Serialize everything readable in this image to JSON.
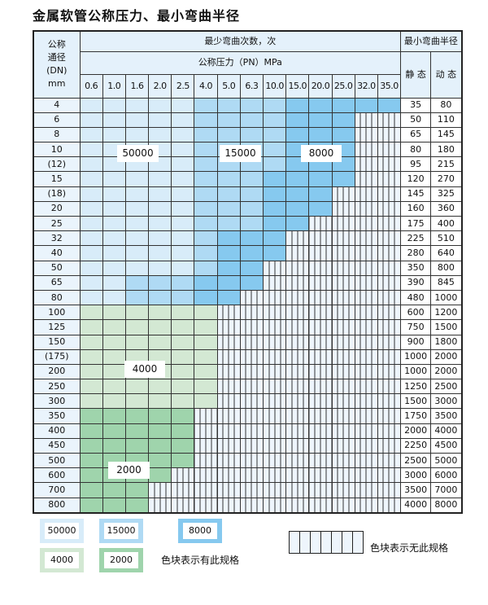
{
  "title": "金属软管公称压力、最小弯曲半径",
  "header": {
    "dn_label": [
      "公称",
      "通径",
      "(DN)",
      "mm"
    ],
    "cycles_label": "最少弯曲次数，次",
    "pressure_label": "公称压力（PN）MPa",
    "radius_label": "最小弯曲半径",
    "static_label": "静 态",
    "dynamic_label": "动 态",
    "pressures": [
      "0.6",
      "1.0",
      "1.6",
      "2.0",
      "2.5",
      "4.0",
      "5.0",
      "6.3",
      "10.0",
      "15.0",
      "20.0",
      "25.0",
      "32.0",
      "35.0"
    ]
  },
  "rows": [
    {
      "dn": "4",
      "static": "35",
      "dynamic": "80",
      "cells": "aaaaabbbbccccc"
    },
    {
      "dn": "6",
      "static": "50",
      "dynamic": "110",
      "cells": "aaaaabbbbccc--"
    },
    {
      "dn": "8",
      "static": "65",
      "dynamic": "145",
      "cells": "aaaaabbbbccc--"
    },
    {
      "dn": "10",
      "static": "80",
      "dynamic": "180",
      "cells": "aaaaabbbbccc--"
    },
    {
      "dn": "(12)",
      "static": "95",
      "dynamic": "215",
      "cells": "aaaaabbbbccc--"
    },
    {
      "dn": "15",
      "static": "120",
      "dynamic": "270",
      "cells": "aaaaabbbcccc--"
    },
    {
      "dn": "(18)",
      "static": "145",
      "dynamic": "325",
      "cells": "aaaaabbbccc---"
    },
    {
      "dn": "20",
      "static": "160",
      "dynamic": "360",
      "cells": "aaaaabbbccc---"
    },
    {
      "dn": "25",
      "static": "175",
      "dynamic": "400",
      "cells": "aaaaabbbcc----"
    },
    {
      "dn": "32",
      "static": "225",
      "dynamic": "510",
      "cells": "aaaaabccc-----"
    },
    {
      "dn": "40",
      "static": "280",
      "dynamic": "640",
      "cells": "aaaaabccc-----"
    },
    {
      "dn": "50",
      "static": "350",
      "dynamic": "800",
      "cells": "aaaaabcc------"
    },
    {
      "dn": "65",
      "static": "390",
      "dynamic": "845",
      "cells": "aabbbccc------"
    },
    {
      "dn": "80",
      "static": "480",
      "dynamic": "1000",
      "cells": "aabbbcc-------"
    },
    {
      "dn": "100",
      "static": "600",
      "dynamic": "1200",
      "cells": "gggggg--------"
    },
    {
      "dn": "125",
      "static": "750",
      "dynamic": "1500",
      "cells": "gggggg--------"
    },
    {
      "dn": "150",
      "static": "900",
      "dynamic": "1800",
      "cells": "gggggg--------"
    },
    {
      "dn": "(175)",
      "static": "1000",
      "dynamic": "2000",
      "cells": "gggggg--------"
    },
    {
      "dn": "200",
      "static": "1000",
      "dynamic": "2000",
      "cells": "gggggg--------"
    },
    {
      "dn": "250",
      "static": "1250",
      "dynamic": "2500",
      "cells": "gggggg--------"
    },
    {
      "dn": "300",
      "static": "1500",
      "dynamic": "3000",
      "cells": "gggggg--------"
    },
    {
      "dn": "350",
      "static": "1750",
      "dynamic": "3500",
      "cells": "hhhhh---------"
    },
    {
      "dn": "400",
      "static": "2000",
      "dynamic": "4000",
      "cells": "hhhhh---------"
    },
    {
      "dn": "450",
      "static": "2250",
      "dynamic": "4500",
      "cells": "hhhhh---------"
    },
    {
      "dn": "500",
      "static": "2500",
      "dynamic": "5000",
      "cells": "hhhhh---------"
    },
    {
      "dn": "600",
      "static": "3000",
      "dynamic": "6000",
      "cells": "hhhh----------"
    },
    {
      "dn": "700",
      "static": "3500",
      "dynamic": "7000",
      "cells": "hhh-----------"
    },
    {
      "dn": "800",
      "static": "4000",
      "dynamic": "8000",
      "cells": "hhh-----------"
    }
  ],
  "region_labels": {
    "a": "50000",
    "b": "15000",
    "c": "8000",
    "g": "4000",
    "h": "2000"
  },
  "legend": {
    "items": [
      "50000",
      "15000",
      "8000",
      "4000",
      "2000"
    ],
    "available_text": "色块表示有此规格",
    "unavailable_text": "色块表示无此规格"
  },
  "colors": {
    "a": "#d8ecf9",
    "b": "#afdaf4",
    "c": "#86c9ef",
    "g": "#d3e8d3",
    "h": "#9fd4ac",
    "none": "#eef5fc"
  }
}
